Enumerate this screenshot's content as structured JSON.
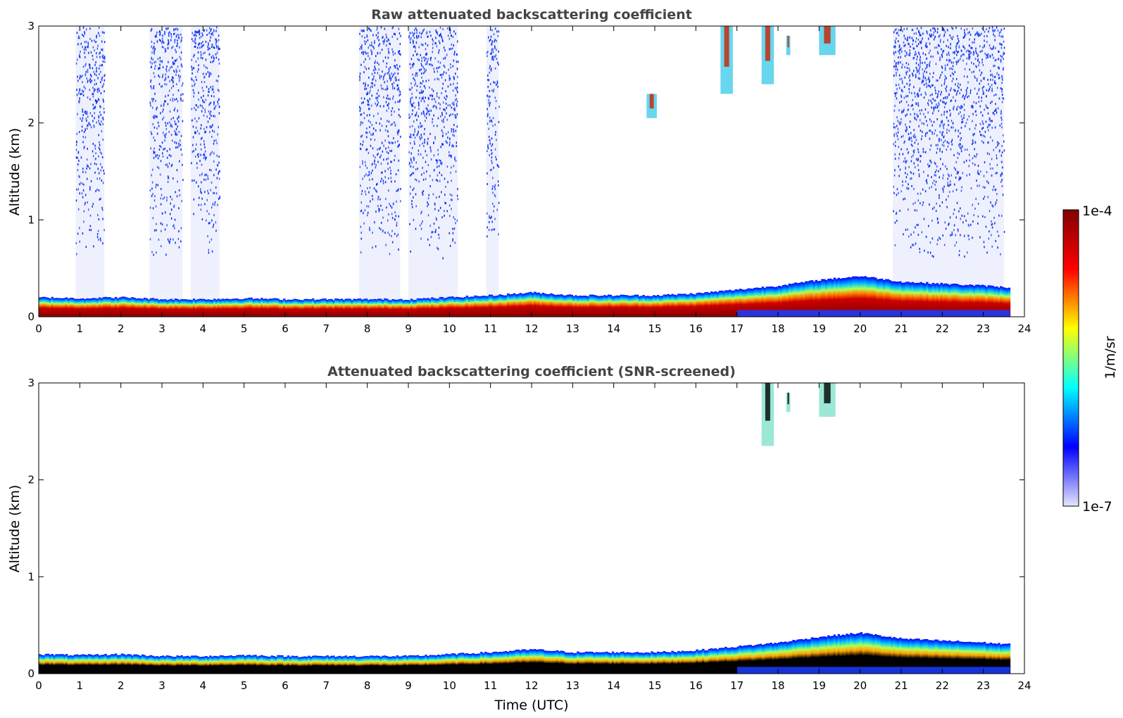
{
  "chart_data": [
    {
      "type": "heatmap",
      "title": "Raw attenuated backscattering coefficient",
      "xlabel": "",
      "ylabel": "Altitude (km)",
      "xlim": [
        0,
        24
      ],
      "ylim": [
        0,
        3
      ],
      "xticks": [
        "0",
        "1",
        "2",
        "3",
        "4",
        "5",
        "6",
        "7",
        "8",
        "9",
        "10",
        "11",
        "12",
        "13",
        "14",
        "15",
        "16",
        "17",
        "18",
        "19",
        "20",
        "21",
        "22",
        "23",
        "24"
      ],
      "yticks": [
        "0",
        "1",
        "2",
        "3"
      ],
      "grid": false,
      "data_extent_hours": 23.65,
      "approx_layer_top_km": [
        [
          0,
          0.2
        ],
        [
          1,
          0.19
        ],
        [
          2,
          0.2
        ],
        [
          3,
          0.18
        ],
        [
          4,
          0.18
        ],
        [
          5,
          0.19
        ],
        [
          6,
          0.18
        ],
        [
          7,
          0.18
        ],
        [
          8,
          0.18
        ],
        [
          9,
          0.18
        ],
        [
          10,
          0.2
        ],
        [
          11,
          0.22
        ],
        [
          12,
          0.25
        ],
        [
          13,
          0.22
        ],
        [
          14,
          0.22
        ],
        [
          15,
          0.22
        ],
        [
          16,
          0.24
        ],
        [
          17,
          0.28
        ],
        [
          18,
          0.32
        ],
        [
          19,
          0.38
        ],
        [
          20,
          0.42
        ],
        [
          21,
          0.36
        ],
        [
          22,
          0.34
        ],
        [
          23,
          0.32
        ],
        [
          23.65,
          0.3
        ]
      ],
      "high_clouds": [
        {
          "t0": 14.8,
          "t1": 15.05,
          "z0": 2.05,
          "z1": 2.3
        },
        {
          "t0": 16.6,
          "t1": 16.9,
          "z0": 2.3,
          "z1": 3.0
        },
        {
          "t0": 17.6,
          "t1": 17.9,
          "z0": 2.4,
          "z1": 3.0
        },
        {
          "t0": 18.2,
          "t1": 18.3,
          "z0": 2.7,
          "z1": 2.9
        },
        {
          "t0": 19.0,
          "t1": 19.4,
          "z0": 2.7,
          "z1": 3.0
        }
      ]
    },
    {
      "type": "heatmap",
      "title": "Attenuated backscattering coefficient (SNR-screened)",
      "xlabel": "Time (UTC)",
      "ylabel": "Altitude (km)",
      "xlim": [
        0,
        24
      ],
      "ylim": [
        0,
        3
      ],
      "xticks": [
        "0",
        "1",
        "2",
        "3",
        "4",
        "5",
        "6",
        "7",
        "8",
        "9",
        "10",
        "11",
        "12",
        "13",
        "14",
        "15",
        "16",
        "17",
        "18",
        "19",
        "20",
        "21",
        "22",
        "23",
        "24"
      ],
      "yticks": [
        "0",
        "1",
        "2",
        "3"
      ],
      "grid": false,
      "data_extent_hours": 23.65,
      "high_clouds": [
        {
          "t0": 17.6,
          "t1": 17.9,
          "z0": 2.35,
          "z1": 3.0
        },
        {
          "t0": 18.2,
          "t1": 18.3,
          "z0": 2.7,
          "z1": 2.9
        },
        {
          "t0": 19.0,
          "t1": 19.4,
          "z0": 2.65,
          "z1": 3.0
        }
      ]
    }
  ],
  "colorbar": {
    "max_label": "1e-4",
    "min_label": "1e-7",
    "unit_label": "1/m/sr",
    "colormap": [
      "#e6e6fa",
      "#0000ff",
      "#00ffff",
      "#ffff00",
      "#ff0000",
      "#800000"
    ]
  }
}
